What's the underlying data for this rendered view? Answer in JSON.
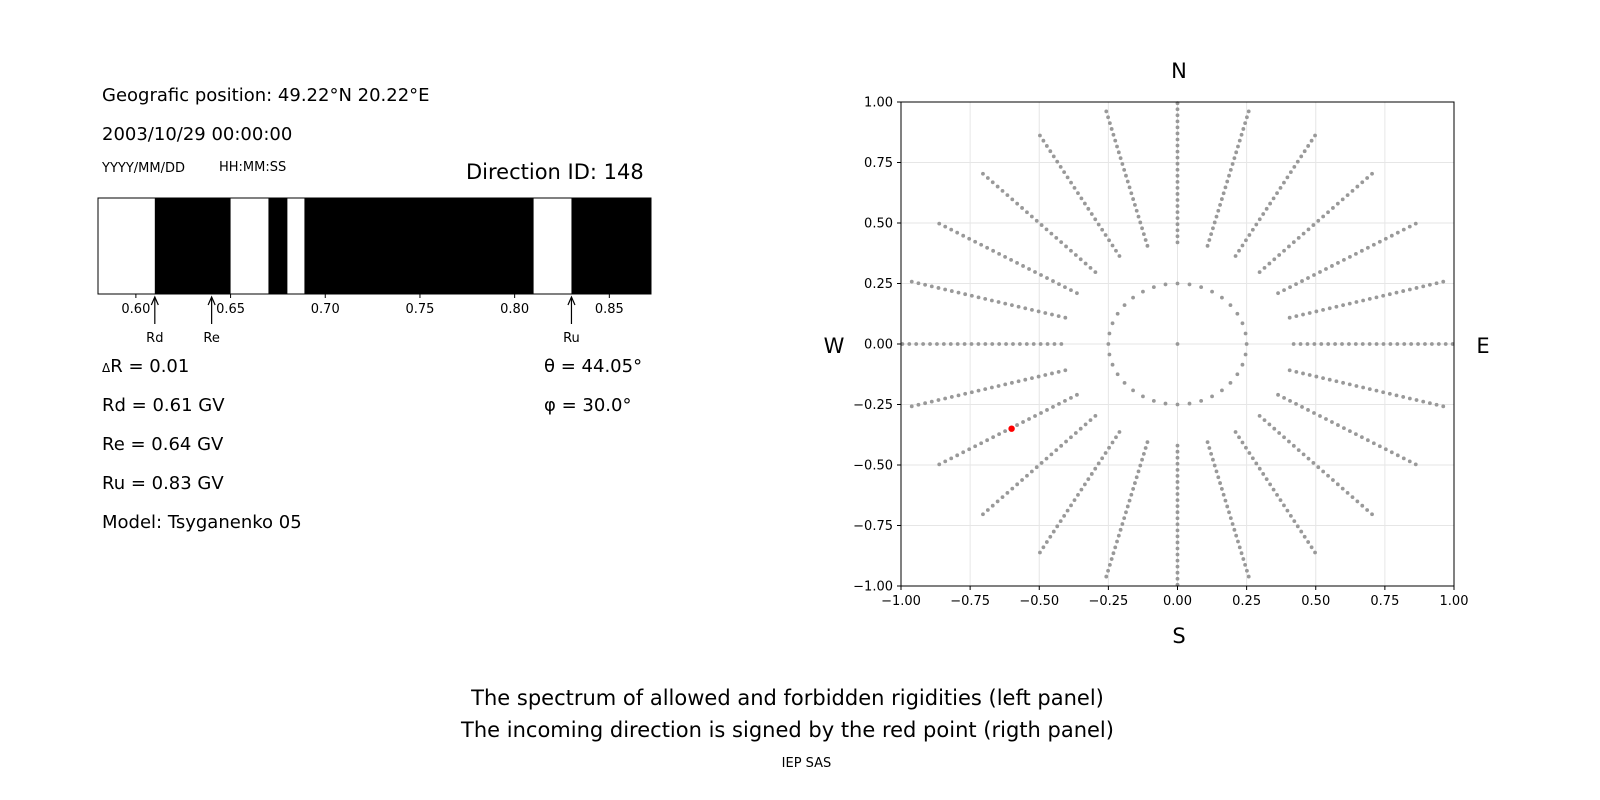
{
  "info": {
    "position": "Geografic position: 49.22°N 20.22°E",
    "datetime": "2003/10/29 00:00:00",
    "date_format": "YYYY/MM/DD",
    "time_format": "HH:MM:SS",
    "direction_id": "Direction ID: 148"
  },
  "stats": {
    "delta_r": "R = 0.01",
    "delta_symbol": "Δ",
    "rd": "Rd = 0.61 GV",
    "re": "Re = 0.64 GV",
    "ru": "Ru = 0.83 GV",
    "model": "Model: Tsyganenko 05",
    "theta": "θ = 44.05°",
    "phi": "φ = 30.0°"
  },
  "caption": {
    "line1": "The spectrum of allowed and forbidden rigidities (left panel)",
    "line2": "The incoming direction is signed by the red point (rigth panel)",
    "credit": "IEP SAS"
  },
  "compass": {
    "north": "N",
    "south": "S",
    "east": "E",
    "west": "W"
  },
  "chart_data": [
    {
      "type": "bar",
      "name": "rigidity-spectrum",
      "xlim": [
        0.58,
        0.872
      ],
      "xticks": [
        0.6,
        0.65,
        0.7,
        0.75,
        0.8,
        0.85
      ],
      "xtick_labels": [
        "0.60",
        "0.65",
        "0.70",
        "0.75",
        "0.80",
        "0.85"
      ],
      "allowed_color": "#ffffff",
      "forbidden_color": "#000000",
      "forbidden_bands": [
        [
          0.61,
          0.65
        ],
        [
          0.67,
          0.68
        ],
        [
          0.689,
          0.81
        ],
        [
          0.83,
          0.872
        ]
      ],
      "markers": [
        {
          "label": "Rd",
          "value": 0.61
        },
        {
          "label": "Re",
          "value": 0.64
        },
        {
          "label": "Ru",
          "value": 0.83
        }
      ]
    },
    {
      "type": "scatter",
      "name": "direction-map",
      "xlim": [
        -1.0,
        1.0
      ],
      "ylim": [
        -1.0,
        1.0
      ],
      "xticks": [
        -1.0,
        -0.75,
        -0.5,
        -0.25,
        0.0,
        0.25,
        0.5,
        0.75,
        1.0
      ],
      "yticks": [
        -1.0,
        -0.75,
        -0.5,
        -0.25,
        0.0,
        0.25,
        0.5,
        0.75,
        1.0
      ],
      "xtick_labels": [
        "−1.00",
        "−0.75",
        "−0.50",
        "−0.25",
        "0.00",
        "0.25",
        "0.50",
        "0.75",
        "1.00"
      ],
      "ytick_labels": [
        "−1.00",
        "−0.75",
        "−0.50",
        "−0.25",
        "0.00",
        "0.25",
        "0.50",
        "0.75",
        "1.00"
      ],
      "grid": true,
      "grid_color": "#e6e6e6",
      "point_color": "#999999",
      "highlight_color": "#ff0000",
      "center_point": [
        0.0,
        0.0
      ],
      "inner_ring": {
        "radius": 0.25,
        "count": 36
      },
      "azimuth_step_deg": 15,
      "radius_start": 0.42,
      "radius_end": 1.0,
      "radius_step": 0.025,
      "highlight": {
        "x": -0.6,
        "y": -0.35
      }
    }
  ]
}
